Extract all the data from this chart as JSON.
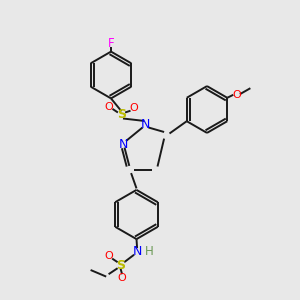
{
  "background_color": "#e8e8e8",
  "bond_color": "#1a1a1a",
  "F_color": "#ff00ff",
  "O_color": "#ff0000",
  "N_color": "#0000ff",
  "S_color": "#bbbb00",
  "H_color": "#6a9955",
  "figsize": [
    3.0,
    3.0
  ],
  "dpi": 100,
  "xlim": [
    0,
    10
  ],
  "ylim": [
    0,
    10
  ]
}
